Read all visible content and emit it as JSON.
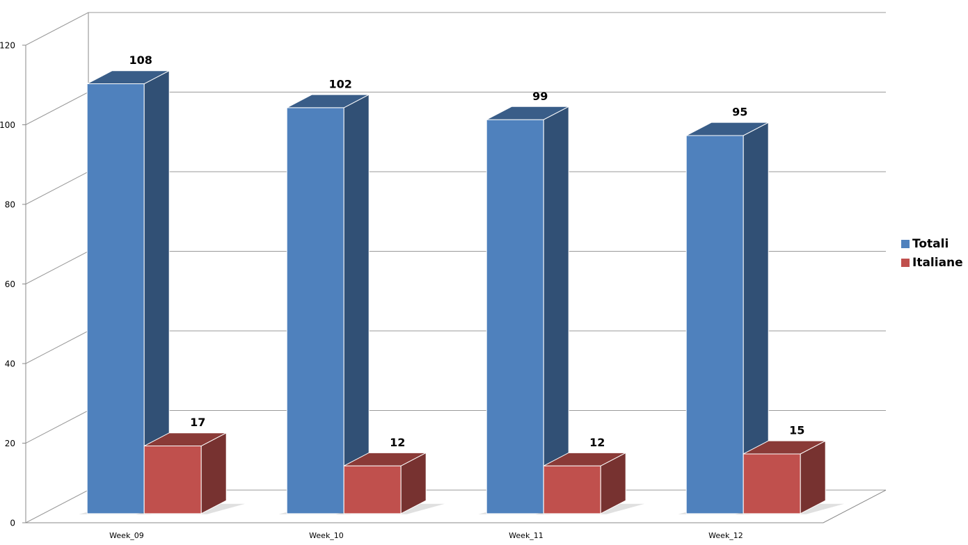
{
  "chart_data": {
    "type": "bar3d",
    "categories": [
      "Week_09",
      "Week_10",
      "Week_11",
      "Week_12"
    ],
    "series": [
      {
        "name": "Totali",
        "color": "#4f81bd",
        "values": [
          108,
          102,
          99,
          95
        ]
      },
      {
        "name": "Italiane",
        "color": "#c0504d",
        "values": [
          17,
          12,
          12,
          15
        ]
      }
    ],
    "ylim": [
      0,
      120
    ],
    "yticks": [
      0,
      20,
      40,
      60,
      80,
      100,
      120
    ],
    "grid": true,
    "legend": "right"
  }
}
